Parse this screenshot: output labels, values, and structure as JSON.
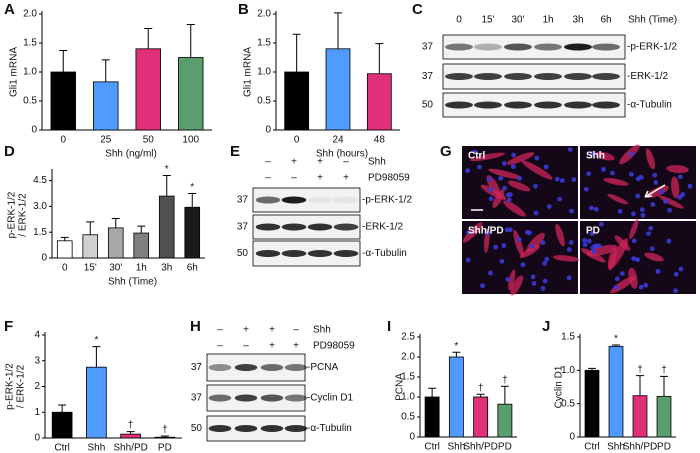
{
  "chart_data": [
    {
      "type": "bar",
      "panel_label": "A",
      "y_label": [
        "Gli1 mRNA"
      ],
      "x_label": "Shh (ng/ml)",
      "categories": [
        "0",
        "25",
        "50",
        "100"
      ],
      "values": [
        1.0,
        0.83,
        1.4,
        1.25
      ],
      "errors": [
        0.37,
        0.38,
        0.35,
        0.57
      ],
      "colors": [
        "#000000",
        "#4f9bff",
        "#e0307a",
        "#5a9e6e"
      ],
      "ylim": [
        0,
        2
      ],
      "yticks": [
        0,
        0.5,
        {
          "value": 1,
          "label": "1.0"
        },
        1.5,
        {
          "value": 2,
          "label": "2.0"
        }
      ]
    },
    {
      "type": "bar",
      "panel_label": "B",
      "y_label": [
        "Gli1 mRNA"
      ],
      "x_label": "Shh (hours)",
      "categories": [
        "0",
        "24",
        "48"
      ],
      "values": [
        1.0,
        1.4,
        0.97
      ],
      "errors": [
        0.65,
        0.62,
        0.52
      ],
      "colors": [
        "#000000",
        "#4f9bff",
        "#e0307a"
      ],
      "ylim": [
        0,
        2
      ],
      "yticks": [
        0,
        0.5,
        {
          "value": 1,
          "label": "1.0"
        },
        1.5,
        {
          "value": 2,
          "label": "2.0"
        }
      ]
    },
    {
      "type": "bar",
      "panel_label": "D",
      "y_label": [
        "p-ERK-1/2",
        "/ ERK-1/2"
      ],
      "x_label": "Shh (Time)",
      "categories": [
        "0",
        "15'",
        "30'",
        "1h",
        "3h",
        "6h"
      ],
      "values": [
        1.0,
        1.35,
        1.75,
        1.45,
        3.6,
        2.95
      ],
      "errors": [
        0.2,
        0.75,
        0.55,
        0.4,
        1.2,
        0.8
      ],
      "colors": [
        "#ffffff",
        "#d0d0d0",
        "#a8a8a8",
        "#808080",
        "#505050",
        "#1a1a1a"
      ],
      "ylim": [
        0,
        5
      ],
      "yticks": [
        0,
        1.5,
        {
          "value": 3,
          "label": "3.0"
        },
        4.5
      ],
      "significance": [
        null,
        null,
        null,
        null,
        "*",
        "*"
      ]
    },
    {
      "type": "bar",
      "panel_label": "F",
      "y_label": [
        "p-ERK-1/2",
        "/ ERK-1/2"
      ],
      "categories": [
        "Ctrl",
        "Shh",
        "Shh/PD",
        "PD"
      ],
      "values": [
        1.0,
        2.75,
        0.15,
        0.03
      ],
      "errors": [
        0.28,
        0.8,
        0.1,
        0.05
      ],
      "colors": [
        "#000000",
        "#4f9bff",
        "#e0307a",
        "#5a9e6e"
      ],
      "ylim": [
        0,
        4
      ],
      "yticks": [
        0,
        1,
        2,
        3,
        4
      ],
      "significance": [
        null,
        "*",
        "†",
        "†"
      ]
    },
    {
      "type": "bar",
      "panel_label": "I",
      "y_label": [
        "PCNA"
      ],
      "categories": [
        "Ctrl",
        "Shh",
        "Shh/PD",
        "PD"
      ],
      "values": [
        1.0,
        2.0,
        1.0,
        0.82
      ],
      "errors": [
        0.22,
        0.12,
        0.07,
        0.45
      ],
      "colors": [
        "#000000",
        "#4f9bff",
        "#e0307a",
        "#5a9e6e"
      ],
      "ylim": [
        0,
        2.5
      ],
      "yticks": [
        0,
        0.5,
        {
          "value": 1,
          "label": "1.0"
        },
        1.5,
        {
          "value": 2,
          "label": "2.0"
        },
        2.5
      ],
      "significance": [
        null,
        "*",
        "†",
        "†"
      ]
    },
    {
      "type": "bar",
      "panel_label": "J",
      "y_label": [
        "Cyclin D1"
      ],
      "categories": [
        "Ctrl",
        "Shh",
        "Shh/PD",
        "PD"
      ],
      "values": [
        1.0,
        1.36,
        0.62,
        0.61
      ],
      "errors": [
        0.03,
        0.02,
        0.3,
        0.3
      ],
      "colors": [
        "#000000",
        "#4f9bff",
        "#e0307a",
        "#5a9e6e"
      ],
      "ylim": [
        0,
        1.5
      ],
      "yticks": [
        0,
        0.5,
        {
          "value": 1,
          "label": "1.0"
        },
        1.5
      ],
      "significance": [
        null,
        "*",
        "†",
        "†"
      ]
    }
  ],
  "blots": [
    {
      "panel_label": "C",
      "lane_labels": [
        "0",
        "15'",
        "30'",
        "1h",
        "3h",
        "6h"
      ],
      "lane_group": "Shh (Time)",
      "rows": [
        {
          "mw": "37",
          "label": "-p-ERK-1/2"
        },
        {
          "mw": "37",
          "label": "-ERK-1/2"
        },
        {
          "mw": "50",
          "label": "-α-Tubulin"
        }
      ]
    },
    {
      "panel_label": "E",
      "treatments": [
        {
          "name": "Shh",
          "signs": [
            "–",
            "+",
            "+",
            "–"
          ]
        },
        {
          "name": "PD98059",
          "signs": [
            "–",
            "–",
            "+",
            "+"
          ]
        }
      ],
      "rows": [
        {
          "mw": "37",
          "label": "-p-ERK-1/2"
        },
        {
          "mw": "37",
          "label": "-ERK-1/2"
        },
        {
          "mw": "50",
          "label": "-α-Tubulin"
        }
      ]
    },
    {
      "panel_label": "H",
      "treatments": [
        {
          "name": "Shh",
          "signs": [
            "–",
            "+",
            "+",
            "–"
          ]
        },
        {
          "name": "PD98059",
          "signs": [
            "–",
            "–",
            "+",
            "+"
          ]
        }
      ],
      "rows": [
        {
          "mw": "37",
          "label": "-PCNA"
        },
        {
          "mw": "37",
          "label": "-Cyclin D1"
        },
        {
          "mw": "50",
          "label": "-α-Tubulin"
        }
      ]
    }
  ],
  "micrographs": {
    "panel_label": "G",
    "panels": [
      "Ctrl",
      "Shh",
      "Shh/PD",
      "PD"
    ]
  }
}
